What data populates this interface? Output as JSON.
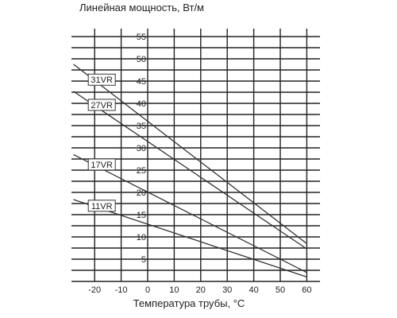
{
  "chart_data": {
    "type": "line",
    "xlabel": "Температура трубы, °C",
    "ylabel": "Линейная мощность, Вт/м",
    "xlim": [
      -28,
      65
    ],
    "ylim": [
      0,
      58
    ],
    "x_ticks": [
      -20,
      -10,
      0,
      10,
      20,
      30,
      40,
      50,
      60
    ],
    "y_ticks": [
      5,
      10,
      15,
      20,
      25,
      30,
      35,
      40,
      45,
      50,
      55
    ],
    "grid": true,
    "series": [
      {
        "name": "31VR",
        "x": [
          -28,
          60
        ],
        "y": [
          48.8,
          8.5
        ]
      },
      {
        "name": "27VR",
        "x": [
          -28,
          60
        ],
        "y": [
          42.7,
          7.3
        ]
      },
      {
        "name": "17VR",
        "x": [
          -28,
          60
        ],
        "y": [
          28.5,
          2.0
        ]
      },
      {
        "name": "11VR",
        "x": [
          -28,
          60
        ],
        "y": [
          18.4,
          1.0
        ]
      }
    ]
  }
}
